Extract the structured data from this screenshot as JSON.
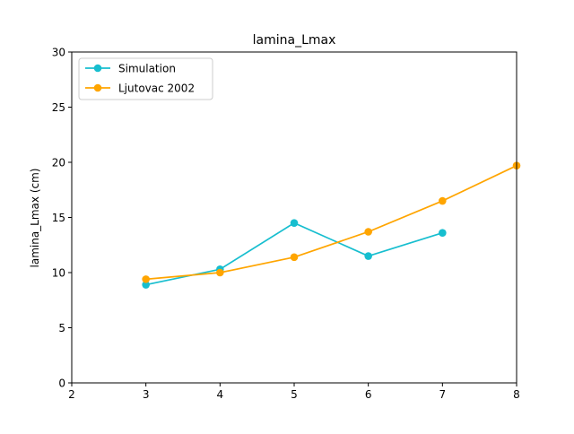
{
  "chart_data": {
    "type": "line",
    "title": "lamina_Lmax",
    "xlabel": "",
    "ylabel": "lamina_Lmax (cm)",
    "xlim": [
      2,
      8
    ],
    "ylim": [
      0,
      30
    ],
    "xticks": [
      2,
      3,
      4,
      5,
      6,
      7,
      8
    ],
    "yticks": [
      0,
      5,
      10,
      15,
      20,
      25,
      30
    ],
    "grid": false,
    "legend_position": "top-left",
    "series": [
      {
        "name": "Simulation",
        "color": "#17becf",
        "marker": "circle",
        "x": [
          3,
          4,
          5,
          6,
          7
        ],
        "y": [
          8.9,
          10.3,
          14.5,
          11.5,
          13.6
        ]
      },
      {
        "name": "Ljutovac 2002",
        "color": "#ffa500",
        "marker": "circle",
        "x": [
          3,
          4,
          5,
          6,
          7,
          8
        ],
        "y": [
          9.4,
          10.0,
          11.4,
          13.7,
          16.5,
          19.7
        ]
      }
    ]
  }
}
